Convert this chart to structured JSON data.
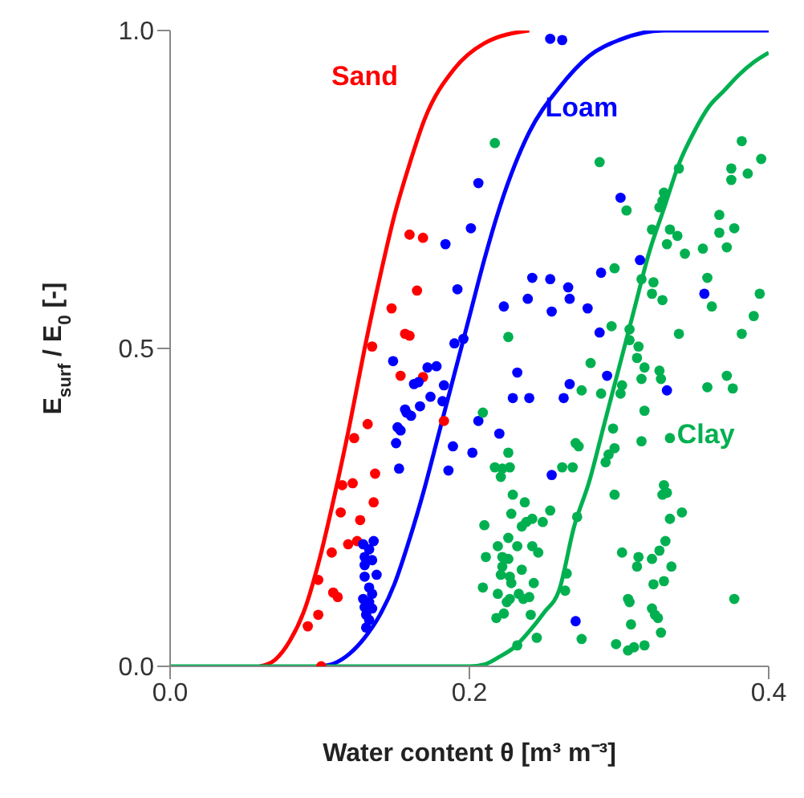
{
  "chart_data": {
    "type": "scatter",
    "xlabel": "Water content θ [m³ m⁻³]",
    "ylabel": "E$_{surf}$ / E$_{0}$ [-]",
    "xlim": [
      0,
      0.4
    ],
    "ylim": [
      0,
      1
    ],
    "xticks": [
      {
        "value": 0,
        "label": "0.0"
      },
      {
        "value": 0.2,
        "label": "0.2"
      },
      {
        "value": 0.4,
        "label": "0.4"
      }
    ],
    "yticks": [
      {
        "value": 0,
        "label": "0.0"
      },
      {
        "value": 0.5,
        "label": "0.5"
      },
      {
        "value": 1,
        "label": "1.0"
      }
    ],
    "grid": false,
    "legend": false,
    "series": [
      {
        "color": "#ff0000",
        "marker": "circle",
        "x": [
          0.16,
          0.169,
          0.165,
          0.148,
          0.157,
          0.16,
          0.135,
          0.154,
          0.169,
          0.183,
          0.132,
          0.123,
          0.137,
          0.115,
          0.122,
          0.136,
          0.114,
          0.127,
          0.119,
          0.125,
          0.108,
          0.099,
          0.109,
          0.112,
          0.099,
          0.092,
          0.101
        ],
        "values": [
          0.679,
          0.674,
          0.591,
          0.563,
          0.523,
          0.52,
          0.503,
          0.457,
          0.455,
          0.386,
          0.381,
          0.359,
          0.303,
          0.285,
          0.288,
          0.258,
          0.242,
          0.23,
          0.192,
          0.197,
          0.179,
          0.136,
          0.116,
          0.109,
          0.081,
          0.063,
          0.0
        ]
      },
      {
        "color": "#0000ff",
        "marker": "circle",
        "x": [
          0.206,
          0.201,
          0.184,
          0.192,
          0.19,
          0.196,
          0.149,
          0.172,
          0.178,
          0.163,
          0.166,
          0.183,
          0.174,
          0.182,
          0.167,
          0.157,
          0.158,
          0.161,
          0.152,
          0.154,
          0.151,
          0.206,
          0.189,
          0.202,
          0.153,
          0.186,
          0.129,
          0.136,
          0.133,
          0.13,
          0.135,
          0.13,
          0.13,
          0.138,
          0.133,
          0.135,
          0.129,
          0.133,
          0.13,
          0.135,
          0.131,
          0.133,
          0.131,
          0.254,
          0.262,
          0.242,
          0.254,
          0.239,
          0.223,
          0.255,
          0.232,
          0.229,
          0.24,
          0.22,
          0.287,
          0.292,
          0.267,
          0.263,
          0.255,
          0.271,
          0.301,
          0.314,
          0.288,
          0.266,
          0.267,
          0.279,
          0.332,
          0.357
        ],
        "values": [
          0.76,
          0.689,
          0.664,
          0.593,
          0.508,
          0.515,
          0.48,
          0.47,
          0.472,
          0.444,
          0.447,
          0.442,
          0.424,
          0.417,
          0.409,
          0.404,
          0.399,
          0.394,
          0.376,
          0.371,
          0.351,
          0.386,
          0.346,
          0.336,
          0.311,
          0.308,
          0.192,
          0.197,
          0.184,
          0.172,
          0.167,
          0.159,
          0.141,
          0.144,
          0.124,
          0.114,
          0.106,
          0.101,
          0.093,
          0.091,
          0.081,
          0.073,
          0.061,
          0.987,
          0.985,
          0.611,
          0.609,
          0.578,
          0.566,
          0.558,
          0.462,
          0.422,
          0.422,
          0.366,
          0.525,
          0.457,
          0.444,
          0.422,
          0.301,
          0.071,
          0.737,
          0.639,
          0.619,
          0.596,
          0.578,
          0.563,
          0.434,
          0.586
        ]
      },
      {
        "color": "#00b050",
        "marker": "circle",
        "x": [
          0.217,
          0.226,
          0.281,
          0.275,
          0.288,
          0.209,
          0.271,
          0.273,
          0.226,
          0.217,
          0.222,
          0.227,
          0.221,
          0.262,
          0.269,
          0.229,
          0.237,
          0.228,
          0.254,
          0.242,
          0.238,
          0.249,
          0.21,
          0.235,
          0.226,
          0.219,
          0.232,
          0.242,
          0.246,
          0.222,
          0.211,
          0.226,
          0.222,
          0.235,
          0.221,
          0.227,
          0.228,
          0.243,
          0.209,
          0.219,
          0.233,
          0.24,
          0.227,
          0.225,
          0.236,
          0.264,
          0.265,
          0.223,
          0.241,
          0.218,
          0.232,
          0.245,
          0.275,
          0.287,
          0.382,
          0.395,
          0.375,
          0.386,
          0.375,
          0.34,
          0.33,
          0.329,
          0.327,
          0.305,
          0.367,
          0.377,
          0.367,
          0.322,
          0.334,
          0.339,
          0.332,
          0.344,
          0.356,
          0.372,
          0.297,
          0.359,
          0.315,
          0.323,
          0.322,
          0.329,
          0.362,
          0.394,
          0.39,
          0.295,
          0.307,
          0.34,
          0.382,
          0.307,
          0.313,
          0.312,
          0.317,
          0.327,
          0.315,
          0.328,
          0.302,
          0.301,
          0.359,
          0.372,
          0.376,
          0.317,
          0.296,
          0.315,
          0.334,
          0.297,
          0.293,
          0.291,
          0.297,
          0.33,
          0.329,
          0.332,
          0.342,
          0.334,
          0.272,
          0.331,
          0.327,
          0.302,
          0.322,
          0.313,
          0.312,
          0.335,
          0.33,
          0.323,
          0.306,
          0.307,
          0.377,
          0.322,
          0.324,
          0.326,
          0.308,
          0.328,
          0.298,
          0.306,
          0.31,
          0.317
        ],
        "values": [
          0.823,
          0.518,
          0.477,
          0.434,
          0.429,
          0.399,
          0.351,
          0.346,
          0.336,
          0.313,
          0.311,
          0.313,
          0.298,
          0.313,
          0.313,
          0.27,
          0.258,
          0.24,
          0.245,
          0.232,
          0.227,
          0.227,
          0.222,
          0.22,
          0.202,
          0.189,
          0.189,
          0.189,
          0.179,
          0.172,
          0.172,
          0.169,
          0.157,
          0.152,
          0.144,
          0.141,
          0.131,
          0.131,
          0.124,
          0.114,
          0.114,
          0.109,
          0.106,
          0.101,
          0.106,
          0.119,
          0.146,
          0.083,
          0.081,
          0.076,
          0.033,
          0.045,
          0.043,
          0.793,
          0.826,
          0.798,
          0.783,
          0.775,
          0.765,
          0.783,
          0.745,
          0.732,
          0.722,
          0.717,
          0.71,
          0.689,
          0.682,
          0.687,
          0.687,
          0.677,
          0.664,
          0.649,
          0.657,
          0.659,
          0.626,
          0.611,
          0.609,
          0.604,
          0.586,
          0.576,
          0.566,
          0.586,
          0.551,
          0.535,
          0.53,
          0.523,
          0.523,
          0.513,
          0.503,
          0.485,
          0.47,
          0.465,
          0.452,
          0.452,
          0.442,
          0.429,
          0.439,
          0.457,
          0.437,
          0.402,
          0.374,
          0.354,
          0.359,
          0.343,
          0.333,
          0.321,
          0.27,
          0.285,
          0.27,
          0.273,
          0.242,
          0.232,
          0.235,
          0.197,
          0.182,
          0.179,
          0.169,
          0.172,
          0.157,
          0.157,
          0.134,
          0.129,
          0.106,
          0.101,
          0.106,
          0.091,
          0.081,
          0.076,
          0.066,
          0.053,
          0.035,
          0.025,
          0.03,
          0.033
        ]
      },
      {
        "type": "line",
        "name": "Sand",
        "color": "#ff0000",
        "marker": "none",
        "x": [
          0.06,
          0.07,
          0.08,
          0.09,
          0.1,
          0.11,
          0.12,
          0.13,
          0.14,
          0.15,
          0.16,
          0.17,
          0.19,
          0.21,
          0.24
        ],
        "values": [
          0,
          0.01,
          0.04,
          0.09,
          0.17,
          0.27,
          0.38,
          0.5,
          0.61,
          0.71,
          0.79,
          0.86,
          0.94,
          0.98,
          1.0
        ]
      },
      {
        "type": "line",
        "name": "Loam",
        "color": "#0000ff",
        "marker": "none",
        "x": [
          0.1,
          0.11,
          0.12,
          0.13,
          0.14,
          0.15,
          0.16,
          0.17,
          0.18,
          0.19,
          0.2,
          0.21,
          0.22,
          0.24,
          0.26,
          0.28,
          0.3,
          0.33,
          0.4
        ],
        "values": [
          0,
          0.005,
          0.02,
          0.045,
          0.08,
          0.13,
          0.2,
          0.28,
          0.37,
          0.46,
          0.55,
          0.64,
          0.72,
          0.84,
          0.91,
          0.96,
          0.985,
          1.0,
          1.0
        ]
      },
      {
        "type": "line",
        "name": "Clay",
        "color": "#00b050",
        "marker": "none",
        "x": [
          0,
          0.2,
          0.21,
          0.22,
          0.23,
          0.24,
          0.25,
          0.26,
          0.27,
          0.28,
          0.29,
          0.3,
          0.31,
          0.32,
          0.33,
          0.34,
          0.35,
          0.36,
          0.37,
          0.38,
          0.39,
          0.4
        ],
        "values": [
          0,
          0,
          0.003,
          0.015,
          0.03,
          0.055,
          0.085,
          0.12,
          0.22,
          0.29,
          0.38,
          0.47,
          0.56,
          0.65,
          0.72,
          0.79,
          0.84,
          0.88,
          0.905,
          0.93,
          0.95,
          0.965
        ]
      }
    ]
  }
}
